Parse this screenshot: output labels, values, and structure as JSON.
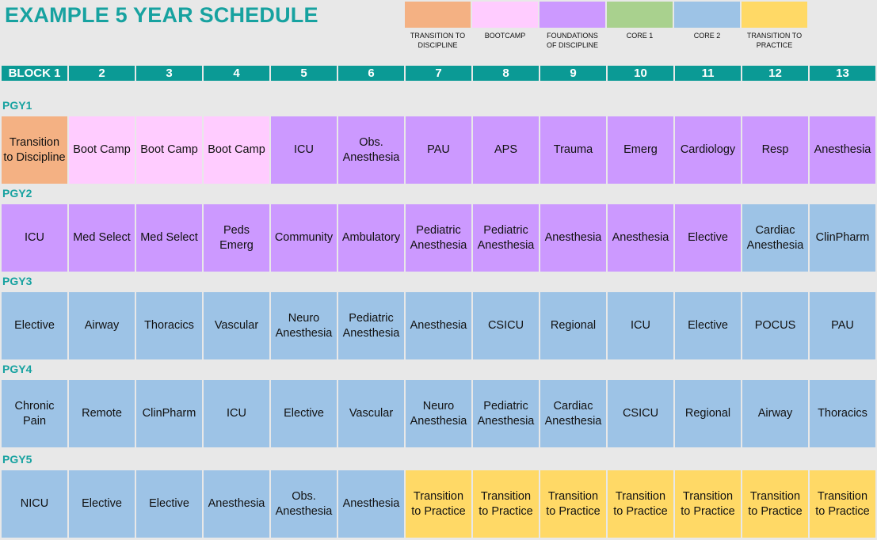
{
  "title": "EXAMPLE 5 YEAR SCHEDULE",
  "legend": [
    {
      "label": "TRANSITION TO\nDISCIPLINE",
      "color": "#f4b183",
      "key": "ttd"
    },
    {
      "label": "BOOTCAMP",
      "color": "#ffccff",
      "key": "bc"
    },
    {
      "label": "FOUNDATIONS\nOF DISCIPLINE",
      "color": "#cc99ff",
      "key": "fod"
    },
    {
      "label": "CORE 1",
      "color": "#a9d18e",
      "key": "c1"
    },
    {
      "label": "CORE 2",
      "color": "#9dc3e6",
      "key": "c2"
    },
    {
      "label": "TRANSITION TO\nPRACTICE",
      "color": "#ffd966",
      "key": "ttp"
    }
  ],
  "blocks": [
    "BLOCK 1",
    "2",
    "3",
    "4",
    "5",
    "6",
    "7",
    "8",
    "9",
    "10",
    "11",
    "12",
    "13"
  ],
  "years": [
    {
      "label": "PGY1",
      "cells": [
        {
          "text": "Transition\nto Discipline",
          "phase": "ttd"
        },
        {
          "text": "Boot Camp",
          "phase": "bc"
        },
        {
          "text": "Boot Camp",
          "phase": "bc"
        },
        {
          "text": "Boot Camp",
          "phase": "bc"
        },
        {
          "text": "ICU",
          "phase": "fod"
        },
        {
          "text": "Obs.\nAnesthesia",
          "phase": "fod"
        },
        {
          "text": "PAU",
          "phase": "fod"
        },
        {
          "text": "APS",
          "phase": "fod"
        },
        {
          "text": "Trauma",
          "phase": "fod"
        },
        {
          "text": "Emerg",
          "phase": "fod"
        },
        {
          "text": "Cardiology",
          "phase": "fod"
        },
        {
          "text": "Resp",
          "phase": "fod"
        },
        {
          "text": "Anesthesia",
          "phase": "fod"
        }
      ]
    },
    {
      "label": "PGY2",
      "cells": [
        {
          "text": "ICU",
          "phase": "fod"
        },
        {
          "text": "Med Select",
          "phase": "fod"
        },
        {
          "text": "Med Select",
          "phase": "fod"
        },
        {
          "text": "Peds\nEmerg",
          "phase": "fod"
        },
        {
          "text": "Community",
          "phase": "fod"
        },
        {
          "text": "Ambulatory",
          "phase": "fod"
        },
        {
          "text": "Pediatric\nAnesthesia",
          "phase": "fod"
        },
        {
          "text": "Pediatric\nAnesthesia",
          "phase": "fod"
        },
        {
          "text": "Anesthesia",
          "phase": "fod"
        },
        {
          "text": "Anesthesia",
          "phase": "fod"
        },
        {
          "text": "Elective",
          "phase": "fod"
        },
        {
          "text": "Cardiac\nAnesthesia",
          "phase": "c2"
        },
        {
          "text": "ClinPharm",
          "phase": "c2"
        }
      ]
    },
    {
      "label": "PGY3",
      "cells": [
        {
          "text": "Elective",
          "phase": "c2"
        },
        {
          "text": "Airway",
          "phase": "c2"
        },
        {
          "text": "Thoracics",
          "phase": "c2"
        },
        {
          "text": "Vascular",
          "phase": "c2"
        },
        {
          "text": "Neuro\nAnesthesia",
          "phase": "c2"
        },
        {
          "text": "Pediatric\nAnesthesia",
          "phase": "c2"
        },
        {
          "text": "Anesthesia",
          "phase": "c2"
        },
        {
          "text": "CSICU",
          "phase": "c2"
        },
        {
          "text": "Regional",
          "phase": "c2"
        },
        {
          "text": "ICU",
          "phase": "c2"
        },
        {
          "text": "Elective",
          "phase": "c2"
        },
        {
          "text": "POCUS",
          "phase": "c2"
        },
        {
          "text": "PAU",
          "phase": "c2"
        }
      ]
    },
    {
      "label": "PGY4",
      "cells": [
        {
          "text": "Chronic\nPain",
          "phase": "c2"
        },
        {
          "text": "Remote",
          "phase": "c2"
        },
        {
          "text": "ClinPharm",
          "phase": "c2"
        },
        {
          "text": "ICU",
          "phase": "c2"
        },
        {
          "text": "Elective",
          "phase": "c2"
        },
        {
          "text": "Vascular",
          "phase": "c2"
        },
        {
          "text": "Neuro\nAnesthesia",
          "phase": "c2"
        },
        {
          "text": "Pediatric\nAnesthesia",
          "phase": "c2"
        },
        {
          "text": "Cardiac\nAnesthesia",
          "phase": "c2"
        },
        {
          "text": "CSICU",
          "phase": "c2"
        },
        {
          "text": "Regional",
          "phase": "c2"
        },
        {
          "text": "Airway",
          "phase": "c2"
        },
        {
          "text": "Thoracics",
          "phase": "c2"
        }
      ]
    },
    {
      "label": "PGY5",
      "cells": [
        {
          "text": "NICU",
          "phase": "c2"
        },
        {
          "text": "Elective",
          "phase": "c2"
        },
        {
          "text": "Elective",
          "phase": "c2"
        },
        {
          "text": "Anesthesia",
          "phase": "c2"
        },
        {
          "text": "Obs.\nAnesthesia",
          "phase": "c2"
        },
        {
          "text": "Anesthesia",
          "phase": "c2"
        },
        {
          "text": "Transition\nto Practice",
          "phase": "ttp"
        },
        {
          "text": "Transition\nto Practice",
          "phase": "ttp"
        },
        {
          "text": "Transition\nto Practice",
          "phase": "ttp"
        },
        {
          "text": "Transition\nto Practice",
          "phase": "ttp"
        },
        {
          "text": "Transition\nto Practice",
          "phase": "ttp"
        },
        {
          "text": "Transition\nto Practice",
          "phase": "ttp"
        },
        {
          "text": "Transition\nto Practice",
          "phase": "ttp"
        }
      ]
    }
  ]
}
